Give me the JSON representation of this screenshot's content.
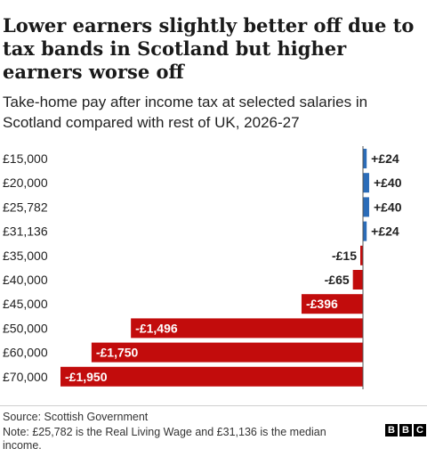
{
  "title": "Lower earners slightly better off due to tax bands in Scotland but higher earners worse off",
  "subtitle": "Take-home pay after income tax at selected salaries in Scotland compared with rest of UK, 2026-27",
  "source": "Source: Scottish Government",
  "note": "Note: £25,782 is the Real Living Wage and £31,136 is the median income.",
  "logo": [
    "B",
    "B",
    "C"
  ],
  "colors": {
    "positive": "#2b6cb8",
    "negative": "#c20c0c"
  },
  "chart_data": {
    "type": "bar",
    "orientation": "horizontal",
    "categories": [
      "£15,000",
      "£20,000",
      "£25,782",
      "£31,136",
      "£35,000",
      "£40,000",
      "£45,000",
      "£50,000",
      "£60,000",
      "£70,000"
    ],
    "values": [
      24,
      40,
      40,
      24,
      -15,
      -65,
      -396,
      -1496,
      -1750,
      -1950
    ],
    "data_labels": [
      "+£24",
      "+£40",
      "+£40",
      "+£24",
      "-£15",
      "-£65",
      "-£396",
      "-£1,496",
      "-£1,750",
      "-£1,950"
    ],
    "xlim": [
      -2000,
      100
    ],
    "grid": false,
    "legend": "none"
  }
}
